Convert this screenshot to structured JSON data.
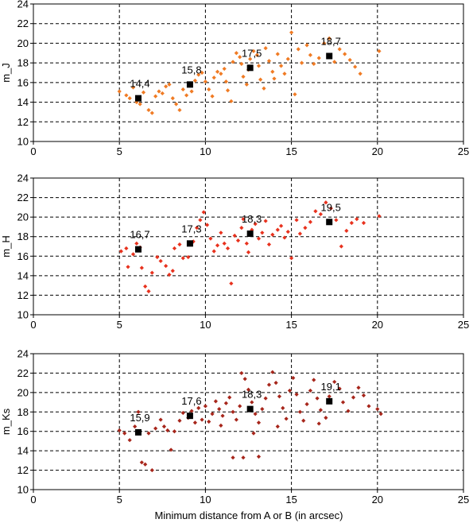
{
  "figure": {
    "xlabel": "Minimum distance from A or B (in arcsec)"
  },
  "chart_data": [
    {
      "type": "scatter",
      "ylabel": "m_J",
      "xlim": [
        0,
        25
      ],
      "ylim": [
        10,
        24
      ],
      "xticks": [
        0,
        5,
        10,
        15,
        20,
        25
      ],
      "yticks": [
        10,
        12,
        14,
        16,
        18,
        20,
        22,
        24
      ],
      "grid": true,
      "color": "#f07b24",
      "series": [
        {
          "marker": "diamond",
          "points": [
            [
              5.0,
              15.1
            ],
            [
              5.4,
              14.7
            ],
            [
              5.6,
              14.4
            ],
            [
              5.8,
              15.5
            ],
            [
              6.0,
              14.0
            ],
            [
              6.2,
              13.8
            ],
            [
              6.4,
              15.0
            ],
            [
              6.7,
              13.2
            ],
            [
              6.9,
              12.9
            ],
            [
              7.1,
              14.6
            ],
            [
              7.3,
              15.1
            ],
            [
              7.5,
              14.9
            ],
            [
              7.7,
              15.6
            ],
            [
              7.9,
              15.8
            ],
            [
              8.1,
              14.4
            ],
            [
              8.3,
              13.8
            ],
            [
              8.5,
              13.2
            ],
            [
              8.7,
              15.3
            ],
            [
              8.9,
              14.7
            ],
            [
              9.2,
              15.1
            ],
            [
              9.4,
              16.2
            ],
            [
              9.6,
              16.8
            ],
            [
              9.8,
              17.0
            ],
            [
              10.0,
              16.1
            ],
            [
              10.2,
              15.3
            ],
            [
              10.4,
              14.6
            ],
            [
              10.5,
              16.5
            ],
            [
              10.7,
              17.1
            ],
            [
              10.9,
              16.9
            ],
            [
              11.1,
              17.4
            ],
            [
              11.2,
              16.1
            ],
            [
              11.3,
              15.2
            ],
            [
              11.5,
              14.1
            ],
            [
              11.6,
              18.1
            ],
            [
              11.8,
              19.0
            ],
            [
              12.0,
              18.6
            ],
            [
              12.1,
              17.9
            ],
            [
              12.2,
              16.6
            ],
            [
              12.4,
              15.8
            ],
            [
              12.5,
              17.3
            ],
            [
              12.6,
              18.4
            ],
            [
              12.8,
              19.2
            ],
            [
              13.0,
              18.8
            ],
            [
              13.1,
              17.7
            ],
            [
              13.2,
              16.3
            ],
            [
              13.4,
              15.4
            ],
            [
              13.5,
              19.5
            ],
            [
              13.7,
              18.2
            ],
            [
              13.9,
              17.1
            ],
            [
              14.0,
              16.4
            ],
            [
              14.2,
              18.9
            ],
            [
              14.4,
              17.7
            ],
            [
              14.6,
              16.9
            ],
            [
              14.8,
              18.4
            ],
            [
              15.0,
              21.1
            ],
            [
              15.2,
              14.8
            ],
            [
              15.4,
              19.4
            ],
            [
              15.6,
              18.0
            ],
            [
              15.9,
              19.8
            ],
            [
              16.1,
              18.8
            ],
            [
              16.3,
              17.9
            ],
            [
              16.6,
              18.5
            ],
            [
              16.9,
              20.0
            ],
            [
              17.2,
              20.5
            ],
            [
              17.5,
              18.1
            ],
            [
              17.8,
              19.4
            ],
            [
              18.1,
              18.9
            ],
            [
              18.4,
              18.3
            ],
            [
              18.7,
              17.6
            ],
            [
              19.0,
              16.9
            ],
            [
              20.1,
              19.2
            ]
          ]
        },
        {
          "marker": "square",
          "color": "#000000",
          "points": [
            [
              6.1,
              14.4
            ],
            [
              9.1,
              15.8
            ],
            [
              12.6,
              17.5
            ],
            [
              17.2,
              18.7
            ]
          ],
          "labels": [
            "14,4",
            "15,8",
            "17,5",
            "18,7"
          ]
        }
      ]
    },
    {
      "type": "scatter",
      "ylabel": "m_H",
      "xlim": [
        0,
        25
      ],
      "ylim": [
        10,
        24
      ],
      "xticks": [
        0,
        5,
        10,
        15,
        20,
        25
      ],
      "yticks": [
        10,
        12,
        14,
        16,
        18,
        20,
        22,
        24
      ],
      "grid": true,
      "color": "#e8321e",
      "series": [
        {
          "marker": "diamond",
          "points": [
            [
              5.1,
              16.5
            ],
            [
              5.4,
              16.8
            ],
            [
              5.5,
              14.9
            ],
            [
              5.8,
              16.2
            ],
            [
              6.0,
              17.3
            ],
            [
              6.2,
              16.9
            ],
            [
              6.3,
              14.8
            ],
            [
              6.5,
              12.9
            ],
            [
              6.7,
              12.4
            ],
            [
              6.9,
              14.3
            ],
            [
              7.2,
              15.9
            ],
            [
              7.4,
              15.5
            ],
            [
              7.7,
              15.0
            ],
            [
              7.9,
              14.1
            ],
            [
              8.1,
              14.5
            ],
            [
              8.2,
              16.8
            ],
            [
              8.5,
              17.2
            ],
            [
              8.7,
              15.8
            ],
            [
              9.0,
              15.9
            ],
            [
              9.3,
              17.5
            ],
            [
              9.5,
              18.9
            ],
            [
              9.7,
              19.7
            ],
            [
              9.9,
              20.5
            ],
            [
              10.1,
              19.2
            ],
            [
              10.3,
              17.8
            ],
            [
              10.5,
              16.5
            ],
            [
              10.7,
              17.1
            ],
            [
              10.9,
              18.4
            ],
            [
              11.1,
              17.3
            ],
            [
              11.3,
              16.8
            ],
            [
              11.5,
              13.2
            ],
            [
              11.7,
              18.1
            ],
            [
              11.9,
              17.6
            ],
            [
              12.1,
              18.9
            ],
            [
              12.2,
              19.8
            ],
            [
              12.4,
              17.3
            ],
            [
              12.5,
              16.4
            ],
            [
              12.7,
              18.7
            ],
            [
              12.9,
              19.3
            ],
            [
              13.1,
              17.8
            ],
            [
              13.3,
              18.4
            ],
            [
              13.5,
              19.6
            ],
            [
              13.7,
              17.2
            ],
            [
              13.9,
              18.2
            ],
            [
              14.2,
              18.7
            ],
            [
              14.4,
              19.1
            ],
            [
              14.6,
              17.9
            ],
            [
              14.8,
              18.5
            ],
            [
              15.0,
              15.8
            ],
            [
              15.3,
              19.7
            ],
            [
              15.5,
              18.3
            ],
            [
              15.8,
              18.9
            ],
            [
              16.1,
              19.5
            ],
            [
              16.4,
              20.6
            ],
            [
              16.7,
              20.3
            ],
            [
              17.0,
              21.5
            ],
            [
              17.3,
              20.9
            ],
            [
              17.6,
              19.7
            ],
            [
              17.9,
              17.0
            ],
            [
              18.2,
              18.6
            ],
            [
              18.5,
              19.4
            ],
            [
              18.8,
              19.8
            ],
            [
              19.2,
              19.4
            ],
            [
              20.1,
              20.1
            ]
          ]
        },
        {
          "marker": "square",
          "color": "#000000",
          "points": [
            [
              6.1,
              16.7
            ],
            [
              9.1,
              17.3
            ],
            [
              12.6,
              18.3
            ],
            [
              17.2,
              19.5
            ]
          ],
          "labels": [
            "16,7",
            "17,3",
            "18,3",
            "19,5"
          ]
        }
      ]
    },
    {
      "type": "scatter",
      "ylabel": "m_Ks",
      "xlim": [
        0,
        25
      ],
      "ylim": [
        10,
        24
      ],
      "xticks": [
        0,
        5,
        10,
        15,
        20,
        25
      ],
      "yticks": [
        10,
        12,
        14,
        16,
        18,
        20,
        22,
        24
      ],
      "grid": true,
      "color": "#a7261b",
      "series": [
        {
          "marker": "diamond",
          "points": [
            [
              5.0,
              16.1
            ],
            [
              5.3,
              15.8
            ],
            [
              5.6,
              15.1
            ],
            [
              5.9,
              16.5
            ],
            [
              6.1,
              18.0
            ],
            [
              6.3,
              12.8
            ],
            [
              6.5,
              12.6
            ],
            [
              6.7,
              15.8
            ],
            [
              6.9,
              12.0
            ],
            [
              7.1,
              16.3
            ],
            [
              7.4,
              17.2
            ],
            [
              7.6,
              16.5
            ],
            [
              7.8,
              16.1
            ],
            [
              8.0,
              14.1
            ],
            [
              8.2,
              16.0
            ],
            [
              8.5,
              17.1
            ],
            [
              8.7,
              17.9
            ],
            [
              9.0,
              17.4
            ],
            [
              9.2,
              18.1
            ],
            [
              9.4,
              16.9
            ],
            [
              9.6,
              18.4
            ],
            [
              9.8,
              17.2
            ],
            [
              10.0,
              18.6
            ],
            [
              10.2,
              17.0
            ],
            [
              10.4,
              17.8
            ],
            [
              10.6,
              19.1
            ],
            [
              10.8,
              18.3
            ],
            [
              11.0,
              17.6
            ],
            [
              11.2,
              18.9
            ],
            [
              11.4,
              19.5
            ],
            [
              11.6,
              18.0
            ],
            [
              11.8,
              17.2
            ],
            [
              12.0,
              18.6
            ],
            [
              12.1,
              22.0
            ],
            [
              12.3,
              21.4
            ],
            [
              12.5,
              20.3
            ],
            [
              12.7,
              19.0
            ],
            [
              12.9,
              17.8
            ],
            [
              13.1,
              16.9
            ],
            [
              13.3,
              18.3
            ],
            [
              13.5,
              19.4
            ],
            [
              13.7,
              20.8
            ],
            [
              13.9,
              22.1
            ],
            [
              14.1,
              21.0
            ],
            [
              14.3,
              19.6
            ],
            [
              14.5,
              18.4
            ],
            [
              14.7,
              17.3
            ],
            [
              14.9,
              20.2
            ],
            [
              15.1,
              21.5
            ],
            [
              15.3,
              19.8
            ],
            [
              15.5,
              18.0
            ],
            [
              15.7,
              17.1
            ],
            [
              15.9,
              18.8
            ],
            [
              16.1,
              20.2
            ],
            [
              16.3,
              21.3
            ],
            [
              16.5,
              19.4
            ],
            [
              16.7,
              18.2
            ],
            [
              17.0,
              17.4
            ],
            [
              17.2,
              19.6
            ],
            [
              17.5,
              21.1
            ],
            [
              17.8,
              20.4
            ],
            [
              18.0,
              19.0
            ],
            [
              18.3,
              18.1
            ],
            [
              18.6,
              19.5
            ],
            [
              18.9,
              20.5
            ],
            [
              19.2,
              19.7
            ],
            [
              19.5,
              18.6
            ],
            [
              20.0,
              18.3
            ],
            [
              20.2,
              17.8
            ],
            [
              11.6,
              13.3
            ],
            [
              12.2,
              13.3
            ],
            [
              13.1,
              13.4
            ],
            [
              10.9,
              16.6
            ],
            [
              12.8,
              15.8
            ],
            [
              14.2,
              16.5
            ],
            [
              16.6,
              16.8
            ]
          ]
        },
        {
          "marker": "square",
          "color": "#000000",
          "points": [
            [
              6.1,
              15.9
            ],
            [
              9.1,
              17.6
            ],
            [
              12.6,
              18.3
            ],
            [
              17.2,
              19.1
            ]
          ],
          "labels": [
            "15,9",
            "17,6",
            "18,3",
            "19,1"
          ]
        }
      ]
    }
  ]
}
